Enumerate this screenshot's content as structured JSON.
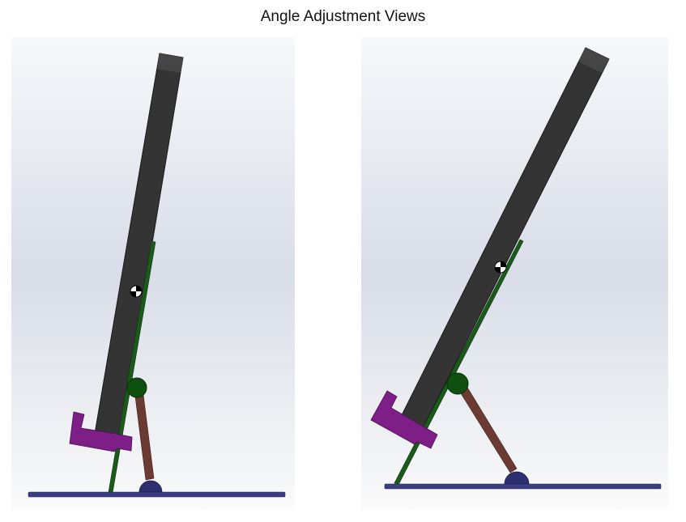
{
  "figure": {
    "title": "Angle Adjustment Views"
  },
  "views": [
    {
      "id": "left"
    },
    {
      "id": "right"
    }
  ],
  "colors": {
    "background_top": "#f7f8fb",
    "background_mid": "#d9dde8",
    "background_bottom": "#fafafa",
    "tablet_body": "#343434",
    "tablet_edge": "#1a1a1a",
    "support_arm": "#1a5a1a",
    "pivot_joint": "#0f5010",
    "strut": "#6b3a32",
    "base_pivot": "#2e2f6e",
    "base_plate": "#3a3d7e",
    "clip": "#7d1f86",
    "origin_marker": "#000000"
  }
}
